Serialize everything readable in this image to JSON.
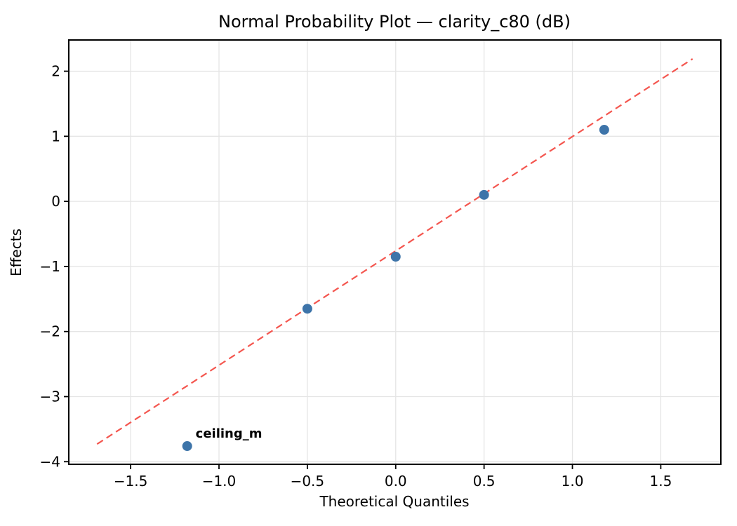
{
  "figure": {
    "title": "Normal Probability Plot — clarity_c80 (dB)",
    "xlabel": "Theoretical Quantiles",
    "ylabel": "Effects"
  },
  "chart_data": {
    "type": "scatter",
    "title": "Normal Probability Plot — clarity_c80 (dB)",
    "xlabel": "Theoretical Quantiles",
    "ylabel": "Effects",
    "xlim": [
      -1.85,
      1.84
    ],
    "ylim": [
      -4.04,
      2.48
    ],
    "xticks": [
      -1.5,
      -1.0,
      -0.5,
      0.0,
      0.5,
      1.0,
      1.5
    ],
    "xtick_labels": [
      "−1.5",
      "−1.0",
      "−0.5",
      "0.0",
      "0.5",
      "1.0",
      "1.5"
    ],
    "yticks": [
      2,
      1,
      0,
      -1,
      -2,
      -3,
      -4
    ],
    "ytick_labels": [
      "2",
      "1",
      "0",
      "−1",
      "−2",
      "−3",
      "−4"
    ],
    "grid": true,
    "legend": null,
    "points": [
      {
        "x": -1.18,
        "y": -3.76,
        "label": "ceiling_m"
      },
      {
        "x": -0.5,
        "y": -1.65,
        "label": null
      },
      {
        "x": 0.0,
        "y": -0.85,
        "label": null
      },
      {
        "x": 0.5,
        "y": 0.1,
        "label": null
      },
      {
        "x": 1.18,
        "y": 1.1,
        "label": null
      }
    ],
    "fit_line": {
      "style": "dashed",
      "x": [
        -1.69,
        1.68
      ],
      "y": [
        -3.73,
        2.19
      ]
    },
    "annotation": {
      "text": "ceiling_m",
      "x": -1.18,
      "y": -3.76,
      "offset_x": 12,
      "offset_y": -12
    },
    "colors": {
      "point": "#3d74a9",
      "line": "#f4564f",
      "annotation": "#e60000",
      "grid": "#e5e5e5",
      "spine": "#000000",
      "background": "#ffffff"
    }
  }
}
